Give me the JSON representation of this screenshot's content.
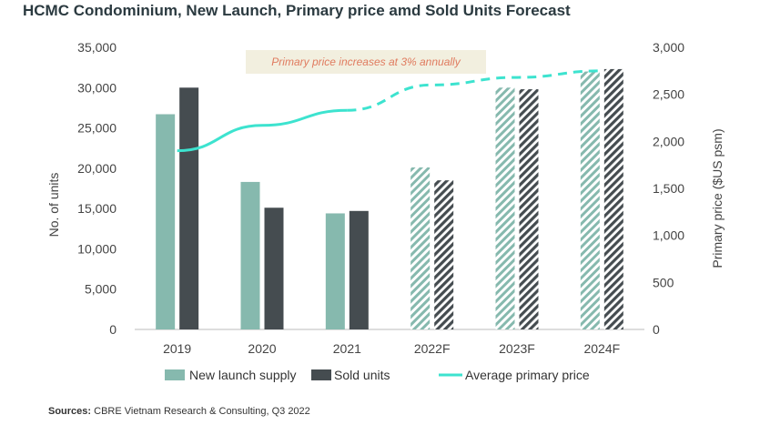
{
  "title": "HCMC Condominium, New Launch, Primary price amd Sold Units Forecast",
  "annotation": "Primary price increases at 3% annually",
  "source_label": "Sources:",
  "source_text": "CBRE Vietnam Research & Consulting, Q3 2022",
  "colors": {
    "new_launch": "#86b9ae",
    "sold": "#454c50",
    "price_line": "#3de3cf",
    "axis": "#bbbbbb",
    "text": "#444444"
  },
  "chart_data": {
    "type": "bar",
    "categories": [
      "2019",
      "2020",
      "2021",
      "2022F",
      "2023F",
      "2024F"
    ],
    "forecast": [
      false,
      false,
      false,
      true,
      true,
      true
    ],
    "series": [
      {
        "name": "New launch supply",
        "values": [
          26700,
          18300,
          14400,
          20100,
          30000,
          32000
        ]
      },
      {
        "name": "Sold units",
        "values": [
          30000,
          15100,
          14700,
          18500,
          29800,
          32300
        ]
      }
    ],
    "line_series": {
      "name": "Average primary price",
      "values": [
        1900,
        2170,
        2330,
        2600,
        2680,
        2750
      ],
      "dashed_from_index": 2
    },
    "ylabel": "No. of units",
    "y2label": "Primary price ($US psm)",
    "ylim": [
      0,
      35000
    ],
    "y2lim": [
      0,
      3000
    ],
    "yticks": [
      "0",
      "5,000",
      "10,000",
      "15,000",
      "20,000",
      "25,000",
      "30,000",
      "35,000"
    ],
    "y2ticks": [
      "0",
      "500",
      "1,000",
      "1,500",
      "2,000",
      "2,500",
      "3,000"
    ],
    "legend_position": "bottom"
  }
}
